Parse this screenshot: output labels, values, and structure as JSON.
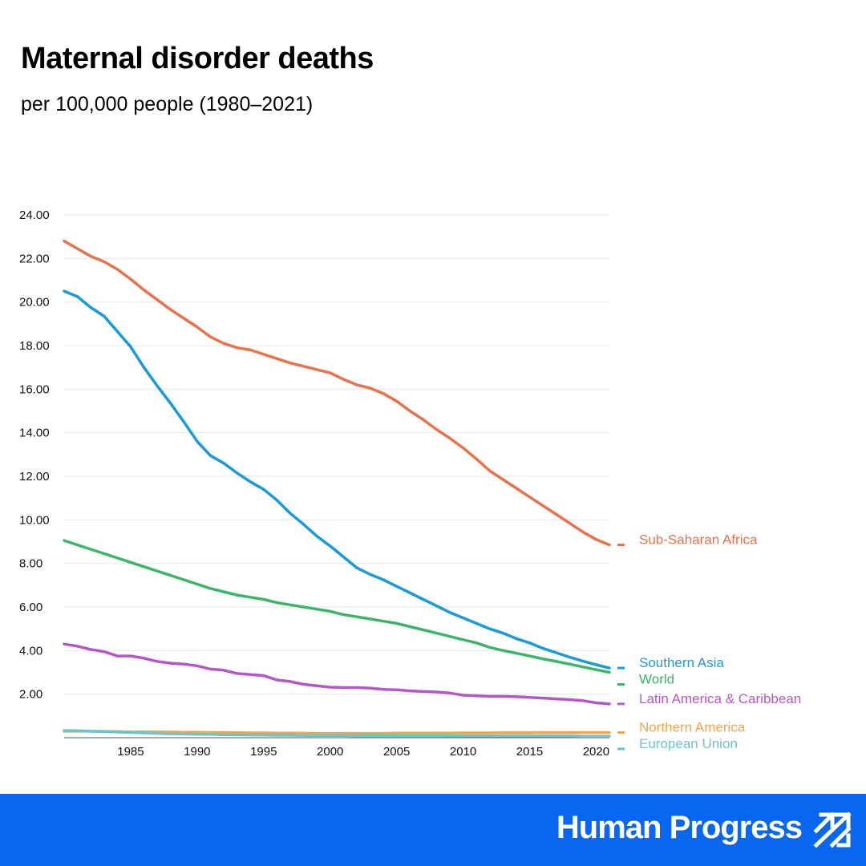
{
  "header": {
    "title": "Maternal disorder deaths",
    "subtitle": "per 100,000 people (1980–2021)"
  },
  "footer": {
    "brand": "Human Progress",
    "brand_color": "#0866f0",
    "icon": "upward-trend-arrows-icon"
  },
  "chart_data": {
    "type": "line",
    "title": "Maternal disorder deaths",
    "subtitle": "per 100,000 people (1980–2021)",
    "xlabel": "",
    "ylabel": "",
    "xlim": [
      1980,
      2021
    ],
    "ylim": [
      0,
      24
    ],
    "grid": true,
    "legend": "right, at line ends",
    "x_ticks": [
      1985,
      1990,
      1995,
      2000,
      2005,
      2010,
      2015,
      2020
    ],
    "x_tick_labels": [
      "1985",
      "1990",
      "1995",
      "2000",
      "2005",
      "2010",
      "2015",
      "2020"
    ],
    "y_ticks": [
      2,
      4,
      6,
      8,
      10,
      12,
      14,
      16,
      18,
      20,
      22,
      24
    ],
    "y_tick_labels": [
      "2.00",
      "4.00",
      "6.00",
      "8.00",
      "10.00",
      "12.00",
      "14.00",
      "16.00",
      "18.00",
      "20.00",
      "22.00",
      "24.00"
    ],
    "x": [
      1980,
      1981,
      1982,
      1983,
      1984,
      1985,
      1986,
      1987,
      1988,
      1989,
      1990,
      1991,
      1992,
      1993,
      1994,
      1995,
      1996,
      1997,
      1998,
      1999,
      2000,
      2001,
      2002,
      2003,
      2004,
      2005,
      2006,
      2007,
      2008,
      2009,
      2010,
      2011,
      2012,
      2013,
      2014,
      2015,
      2016,
      2017,
      2018,
      2019,
      2020,
      2021
    ],
    "series": [
      {
        "name": "Sub-Saharan Africa",
        "color": "#e8724c",
        "values": [
          22.8,
          22.45,
          22.1,
          21.85,
          21.5,
          21.05,
          20.55,
          20.1,
          19.65,
          19.25,
          18.85,
          18.4,
          18.1,
          17.9,
          17.8,
          17.6,
          17.4,
          17.2,
          17.05,
          16.9,
          16.75,
          16.45,
          16.2,
          16.05,
          15.8,
          15.45,
          15.0,
          14.6,
          14.15,
          13.75,
          13.3,
          12.8,
          12.25,
          11.85,
          11.45,
          11.05,
          10.65,
          10.25,
          9.85,
          9.45,
          9.1,
          8.85
        ]
      },
      {
        "name": "Southern Asia",
        "color": "#1a9ad8",
        "values": [
          20.5,
          20.25,
          19.75,
          19.35,
          18.65,
          17.95,
          17.0,
          16.15,
          15.35,
          14.5,
          13.6,
          12.95,
          12.6,
          12.15,
          11.75,
          11.4,
          10.9,
          10.3,
          9.8,
          9.25,
          8.8,
          8.3,
          7.8,
          7.5,
          7.25,
          6.95,
          6.65,
          6.35,
          6.05,
          5.75,
          5.5,
          5.25,
          5.0,
          4.8,
          4.55,
          4.35,
          4.1,
          3.9,
          3.7,
          3.52,
          3.35,
          3.2
        ]
      },
      {
        "name": "World",
        "color": "#3cb56a",
        "values": [
          9.05,
          8.85,
          8.65,
          8.45,
          8.25,
          8.05,
          7.85,
          7.65,
          7.45,
          7.25,
          7.05,
          6.85,
          6.7,
          6.55,
          6.45,
          6.35,
          6.2,
          6.1,
          6.0,
          5.9,
          5.8,
          5.65,
          5.55,
          5.45,
          5.35,
          5.25,
          5.1,
          4.95,
          4.8,
          4.65,
          4.5,
          4.35,
          4.15,
          4.0,
          3.88,
          3.75,
          3.62,
          3.5,
          3.38,
          3.25,
          3.12,
          3.0
        ]
      },
      {
        "name": "Latin America & Caribbean",
        "color": "#b458c8",
        "values": [
          4.3,
          4.2,
          4.05,
          3.95,
          3.75,
          3.75,
          3.65,
          3.5,
          3.42,
          3.38,
          3.3,
          3.15,
          3.1,
          2.95,
          2.9,
          2.85,
          2.65,
          2.58,
          2.45,
          2.38,
          2.32,
          2.3,
          2.3,
          2.28,
          2.22,
          2.2,
          2.15,
          2.12,
          2.1,
          2.05,
          1.95,
          1.92,
          1.9,
          1.9,
          1.88,
          1.85,
          1.82,
          1.78,
          1.75,
          1.7,
          1.6,
          1.55
        ]
      },
      {
        "name": "Northern America",
        "color": "#f2a44f",
        "values": [
          0.3,
          0.3,
          0.3,
          0.29,
          0.28,
          0.27,
          0.27,
          0.26,
          0.26,
          0.25,
          0.25,
          0.24,
          0.24,
          0.23,
          0.22,
          0.22,
          0.21,
          0.21,
          0.21,
          0.2,
          0.2,
          0.2,
          0.2,
          0.2,
          0.2,
          0.21,
          0.21,
          0.21,
          0.21,
          0.21,
          0.22,
          0.22,
          0.22,
          0.23,
          0.23,
          0.23,
          0.24,
          0.24,
          0.24,
          0.24,
          0.24,
          0.24
        ]
      },
      {
        "name": "European Union",
        "color": "#6cc4d2",
        "values": [
          0.33,
          0.32,
          0.3,
          0.28,
          0.26,
          0.24,
          0.22,
          0.2,
          0.18,
          0.17,
          0.16,
          0.15,
          0.14,
          0.13,
          0.12,
          0.12,
          0.11,
          0.11,
          0.1,
          0.1,
          0.1,
          0.1,
          0.09,
          0.09,
          0.09,
          0.09,
          0.09,
          0.09,
          0.09,
          0.08,
          0.08,
          0.08,
          0.08,
          0.08,
          0.08,
          0.08,
          0.08,
          0.08,
          0.08,
          0.07,
          0.07,
          0.07
        ]
      }
    ]
  }
}
